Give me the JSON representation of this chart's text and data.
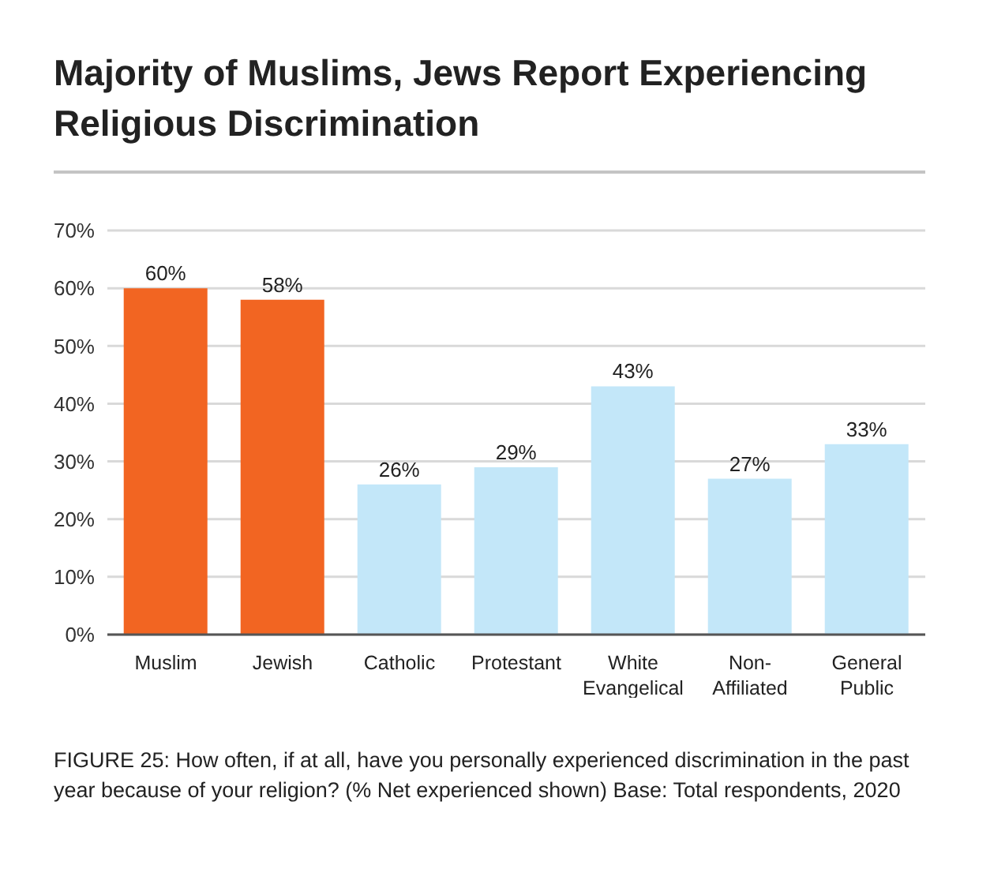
{
  "chart_data": {
    "type": "bar",
    "title": "Majority of Muslims, Jews Report Experiencing Religious Discrimination",
    "categories": [
      "Muslim",
      "Jewish",
      "Catholic",
      "Protestant",
      "White Evangelical",
      "Non-Affiliated",
      "General Public"
    ],
    "values": [
      60,
      58,
      26,
      29,
      43,
      27,
      33
    ],
    "colors": [
      "#f26522",
      "#f26522",
      "#c3e7f9",
      "#c3e7f9",
      "#c3e7f9",
      "#c3e7f9",
      "#c3e7f9"
    ],
    "value_labels": [
      "60%",
      "58%",
      "26%",
      "29%",
      "43%",
      "27%",
      "33%"
    ],
    "ylim": [
      0,
      70
    ],
    "yticks": [
      {
        "value": 0,
        "label": "0%"
      },
      {
        "value": 10,
        "label": "10%"
      },
      {
        "value": 20,
        "label": "20%"
      },
      {
        "value": 30,
        "label": "30%"
      },
      {
        "value": 40,
        "label": "40%"
      },
      {
        "value": 50,
        "label": "50%"
      },
      {
        "value": 60,
        "label": "60%"
      },
      {
        "value": 70,
        "label": "70%"
      }
    ],
    "grid": "y",
    "annotations": [
      "FIGURE 25: How often, if at all, have you personally experienced discrimination in the past year because of your religion? (% Net experienced shown) Base: Total respondents, 2020"
    ]
  }
}
